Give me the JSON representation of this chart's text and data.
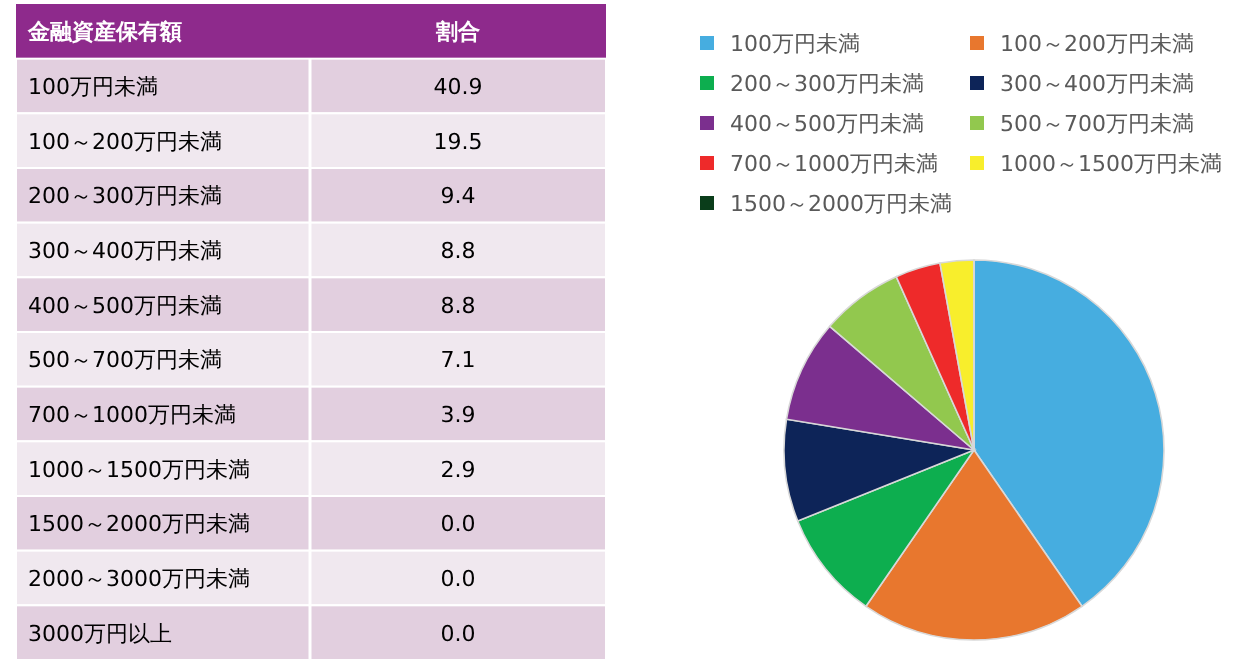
{
  "chart_data": [
    {
      "type": "other",
      "xlabel": "金融資産保有額",
      "ylabel": "割合",
      "categories": [
        "100万円未満",
        "100～200万円未満",
        "200～300万円未満",
        "300～400万円未満",
        "400～500万円未満",
        "500～700万円未満",
        "700～1000万円未満",
        "1000～1500万円未満",
        "1500～2000万円未満",
        "2000～3000万円未満",
        "3000万円以上"
      ],
      "values": [
        40.9,
        19.5,
        9.4,
        8.8,
        8.8,
        7.1,
        3.9,
        2.9,
        0.0,
        0.0,
        0.0
      ],
      "value_labels": [
        "40.9",
        "19.5",
        "9.4",
        "8.8",
        "8.8",
        "7.1",
        "3.9",
        "2.9",
        "0.0",
        "0.0",
        "0.0"
      ]
    },
    {
      "type": "pie",
      "legend": "top",
      "categories": [
        "100万円未満",
        "100～200万円未満",
        "200～300万円未満",
        "300～400万円未満",
        "400～500万円未満",
        "500～700万円未満",
        "700～1000万円未満",
        "1000～1500万円未満",
        "1500～2000万円未満"
      ],
      "values": [
        40.9,
        19.5,
        9.4,
        8.8,
        8.8,
        7.1,
        3.9,
        2.9,
        0.0
      ],
      "colors": [
        "#46ADE0",
        "#E8772E",
        "#0DAE4F",
        "#0D2458",
        "#7B2F8E",
        "#92C84E",
        "#EE2A2A",
        "#F8EE2C",
        "#0A3D1A"
      ]
    }
  ]
}
